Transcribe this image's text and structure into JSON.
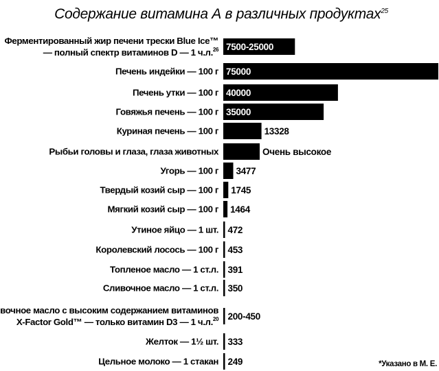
{
  "chart_data": {
    "type": "bar",
    "orientation": "horizontal",
    "title": "Содержание витамина А в различных продуктах",
    "title_footnote": "25",
    "xlabel": "",
    "ylabel": "",
    "grid": false,
    "legend": "none",
    "bar_color": "#000000",
    "categories": [
      {
        "lines": [
          "Ферментированный жир печени трески Blue Ice™",
          "— полный спектр витаминов D — 1 ч.л."
        ],
        "footnote": "26"
      },
      {
        "lines": [
          "Печень индейки — 100 г"
        ]
      },
      {
        "lines": [
          "Печень утки — 100 г"
        ]
      },
      {
        "lines": [
          "Говяжья печень — 100 г"
        ]
      },
      {
        "lines": [
          "Куриная печень — 100 г"
        ]
      },
      {
        "lines": [
          "Рыбьи головы и глаза, глаза животных"
        ]
      },
      {
        "lines": [
          "Угорь — 100 г"
        ]
      },
      {
        "lines": [
          "Твердый козий сыр — 100 г"
        ]
      },
      {
        "lines": [
          "Мягкий козий сыр — 100 г"
        ]
      },
      {
        "lines": [
          "Утиное яйцо — 1 шт."
        ]
      },
      {
        "lines": [
          "Королевский лосось — 100 г"
        ]
      },
      {
        "lines": [
          "Топленое масло — 1 ст.л."
        ]
      },
      {
        "lines": [
          "Сливочное масло — 1 ст.л."
        ]
      },
      {
        "lines": [
          "Сливочное масло с высоким содержанием витаминов",
          "X-Factor Gold™ — только витамин D3 — 1 ч.л."
        ],
        "footnote": "20"
      },
      {
        "lines": [
          "Желток — 1½ шт."
        ]
      },
      {
        "lines": [
          "Цельное молоко — 1 стакан"
        ]
      }
    ],
    "values": [
      25000,
      75000,
      40000,
      35000,
      13328,
      13000,
      3477,
      1745,
      1464,
      472,
      453,
      391,
      350,
      450,
      333,
      249
    ],
    "value_labels": [
      "7500-25000",
      "75000",
      "40000",
      "35000",
      "13328",
      "Очень высокое",
      "3477",
      "1745",
      "1464",
      "472",
      "453",
      "391",
      "350",
      "200-450",
      "333",
      "249"
    ],
    "xlim": [
      0,
      75000
    ],
    "note": "*Указано в М. Е."
  }
}
